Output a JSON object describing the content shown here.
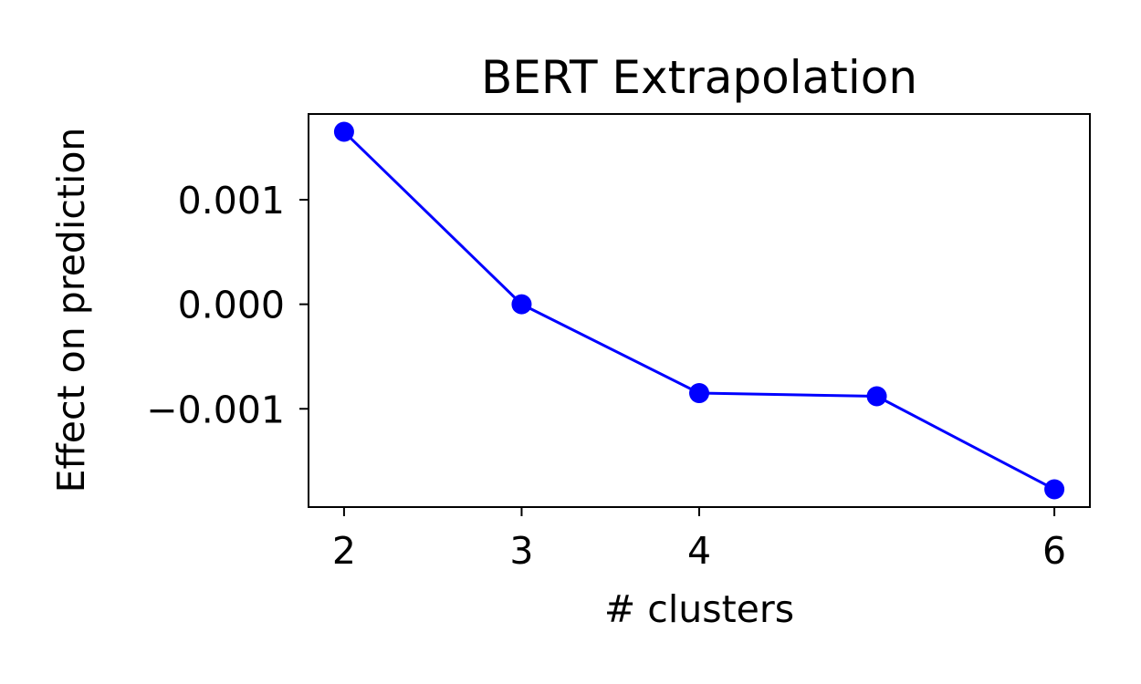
{
  "chart_data": {
    "type": "line",
    "title": "BERT Extrapolation",
    "xlabel": "# clusters",
    "ylabel": "Effect on prediction",
    "x_ticks": [
      {
        "value": 2,
        "label": "2"
      },
      {
        "value": 3,
        "label": "3"
      },
      {
        "value": 4,
        "label": "4"
      },
      {
        "value": 6,
        "label": "6"
      }
    ],
    "y_ticks": [
      {
        "value": 0.001,
        "label": "0.001"
      },
      {
        "value": 0.0,
        "label": "0.000"
      },
      {
        "value": -0.001,
        "label": "−0.001"
      }
    ],
    "xlim": [
      1.8,
      6.2
    ],
    "ylim": [
      -0.00194,
      0.00182
    ],
    "grid": false,
    "series": [
      {
        "color": "#0000ff",
        "marker": "circle",
        "x": [
          2,
          3,
          4,
          5,
          6
        ],
        "y": [
          0.00165,
          0.0,
          -0.00085,
          -0.00088,
          -0.00177
        ]
      }
    ]
  }
}
